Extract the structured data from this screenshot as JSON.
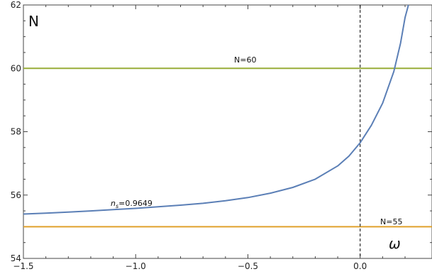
{
  "chart_data": {
    "type": "line",
    "xlim": [
      -1.5,
      0.32
    ],
    "ylim": [
      54,
      62
    ],
    "x_ticks": [
      -1.5,
      -1.0,
      -0.5,
      0.0
    ],
    "x_tick_labels": [
      "−1.5",
      "−1.0",
      "−0.5",
      "0.0"
    ],
    "y_ticks": [
      54,
      56,
      58,
      60,
      62
    ],
    "y_tick_labels": [
      "54",
      "56",
      "58",
      "60",
      "62"
    ],
    "xlabel": "ω",
    "ylabel": "N",
    "grid": false,
    "colors": {
      "curve": "#5b7fb6",
      "n60": "#98ad38",
      "n55": "#e0a02b",
      "vline": "#000000"
    },
    "series": [
      {
        "label": "n_s=0.9649",
        "label_main": "n",
        "label_sub": "s",
        "label_rest": "=0.9649",
        "x": [
          -1.5,
          -1.4,
          -1.3,
          -1.2,
          -1.1,
          -1.0,
          -0.9,
          -0.8,
          -0.7,
          -0.6,
          -0.5,
          -0.4,
          -0.3,
          -0.2,
          -0.1,
          -0.05,
          0.0,
          0.05,
          0.1,
          0.15,
          0.18,
          0.2,
          0.215
        ],
        "y": [
          55.4,
          55.43,
          55.46,
          55.5,
          55.54,
          55.58,
          55.63,
          55.68,
          55.74,
          55.82,
          55.92,
          56.06,
          56.24,
          56.5,
          56.92,
          57.23,
          57.65,
          58.2,
          58.9,
          59.9,
          60.8,
          61.6,
          62.0
        ]
      }
    ],
    "hlines": [
      {
        "label": "N=60",
        "y": 60
      },
      {
        "label": "N=55",
        "y": 55
      }
    ],
    "vline": {
      "x": 0.0,
      "style": "dashed"
    }
  }
}
